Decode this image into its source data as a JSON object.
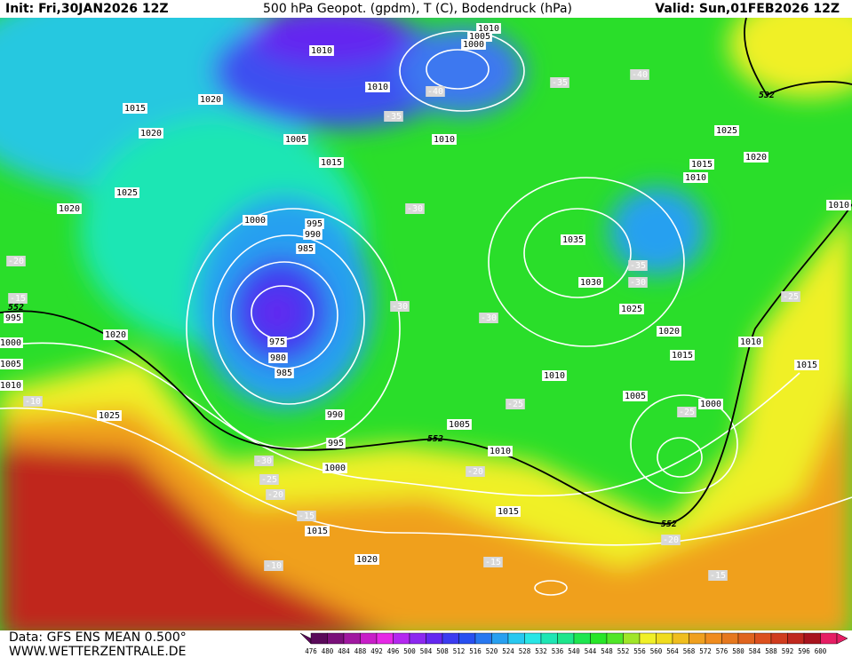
{
  "header": {
    "init": "Init: Fri,30JAN2026 12Z",
    "title": "500 hPa Geopot. (gpdm), T (C), Bodendruck (hPa)",
    "valid": "Valid: Sun,01FEB2026 12Z"
  },
  "map": {
    "isobar_labels": [
      1010,
      1010,
      1005,
      1000,
      1010,
      1015,
      1020,
      1020,
      1005,
      1015,
      1010,
      1025,
      1020,
      1000,
      995,
      990,
      985,
      975,
      980,
      985,
      990,
      995,
      1000,
      1005,
      1010,
      1015,
      1015,
      1020,
      1025,
      1020,
      1035,
      1030,
      1025,
      1020,
      1015,
      1010,
      1005,
      1000,
      1010,
      1015,
      1025,
      1020,
      1015,
      1010,
      1010,
      995,
      1000,
      1005,
      1010
    ],
    "temperature_labels": [
      -35,
      -40,
      -40,
      -35,
      -30,
      -30,
      -30,
      -35,
      -30,
      -25,
      -25,
      -25,
      -20,
      -20,
      -15,
      -15,
      -10,
      -20,
      -15,
      -30,
      -25,
      -20,
      -15,
      -10
    ],
    "contour_labels": [
      552,
      552,
      552,
      532
    ]
  },
  "colorbar": {
    "labels": [
      476,
      480,
      484,
      488,
      492,
      496,
      500,
      504,
      508,
      512,
      516,
      520,
      524,
      528,
      532,
      536,
      540,
      544,
      548,
      552,
      556,
      560,
      564,
      568,
      572,
      576,
      580,
      584,
      588,
      592,
      596,
      600
    ],
    "colors": [
      "#5a0a5a",
      "#7a107a",
      "#a018a0",
      "#c81ec8",
      "#e628e6",
      "#b428f0",
      "#8c28f0",
      "#6428f0",
      "#3c3cf0",
      "#2850f0",
      "#2878f0",
      "#28a0f0",
      "#28c8f0",
      "#28e6e6",
      "#1ee6b4",
      "#1ee68c",
      "#1ee650",
      "#28e628",
      "#50e628",
      "#a0e628",
      "#f0f028",
      "#f0dc1e",
      "#f0be1e",
      "#f0a01e",
      "#f08c1e",
      "#e6781e",
      "#e0641e",
      "#dc501e",
      "#d03c1e",
      "#c0281e",
      "#a8141e",
      "#e61e64"
    ]
  },
  "footer": {
    "source": "Data: GFS ENS MEAN 0.500°",
    "site": "WWW.WETTERZENTRALE.DE"
  }
}
